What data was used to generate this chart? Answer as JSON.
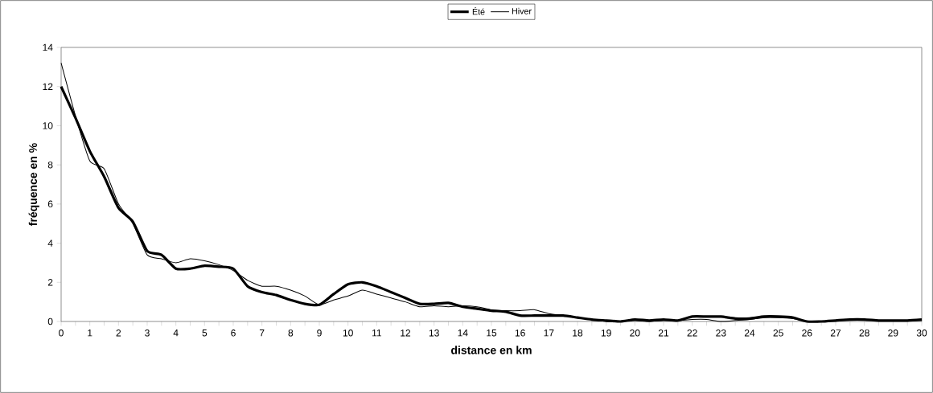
{
  "chart_data": {
    "type": "line",
    "xlabel": "distance en km",
    "ylabel": "fréquence en %",
    "x": [
      0,
      0.5,
      1,
      1.5,
      2,
      2.5,
      3,
      3.5,
      4,
      4.5,
      5,
      5.5,
      6,
      6.5,
      7,
      7.5,
      8,
      8.5,
      9,
      9.5,
      10,
      10.5,
      11,
      11.5,
      12,
      12.5,
      13,
      13.5,
      14,
      14.5,
      15,
      15.5,
      16,
      16.5,
      17,
      17.5,
      18,
      18.5,
      19,
      19.5,
      20,
      20.5,
      21,
      21.5,
      22,
      22.5,
      23,
      23.5,
      24,
      24.5,
      25,
      25.5,
      26,
      26.5,
      27,
      27.5,
      28,
      28.5,
      29,
      29.5,
      30
    ],
    "series": [
      {
        "name": "Été",
        "color": "#000000",
        "values": [
          12.0,
          10.4,
          8.7,
          7.4,
          5.8,
          5.1,
          3.6,
          3.4,
          2.7,
          2.7,
          2.85,
          2.8,
          2.7,
          1.8,
          1.5,
          1.35,
          1.1,
          0.9,
          0.85,
          1.4,
          1.9,
          2.0,
          1.8,
          1.5,
          1.2,
          0.9,
          0.9,
          0.95,
          0.75,
          0.65,
          0.55,
          0.5,
          0.3,
          0.3,
          0.3,
          0.3,
          0.2,
          0.1,
          0.05,
          0.0,
          0.1,
          0.05,
          0.1,
          0.05,
          0.25,
          0.25,
          0.25,
          0.15,
          0.15,
          0.25,
          0.25,
          0.2,
          0.0,
          0.0,
          0.05,
          0.1,
          0.1,
          0.05,
          0.05,
          0.05,
          0.1
        ]
      },
      {
        "name": "Hiver",
        "color": "#000000",
        "values": [
          13.2,
          10.5,
          8.2,
          7.8,
          6.0,
          5.0,
          3.4,
          3.2,
          3.0,
          3.2,
          3.1,
          2.9,
          2.6,
          2.1,
          1.8,
          1.8,
          1.6,
          1.3,
          0.85,
          1.1,
          1.3,
          1.6,
          1.4,
          1.2,
          1.0,
          0.75,
          0.8,
          0.75,
          0.8,
          0.75,
          0.6,
          0.55,
          0.55,
          0.6,
          0.4,
          0.3,
          0.2,
          0.1,
          0.0,
          0.0,
          0.05,
          0.0,
          0.05,
          0.05,
          0.1,
          0.1,
          0.0,
          0.05,
          0.1,
          0.2,
          0.2,
          0.15,
          0.0,
          0.0,
          0.05,
          0.1,
          0.1,
          0.05,
          0.05,
          0.05,
          0.05
        ]
      }
    ],
    "xlim": [
      0,
      30
    ],
    "xticks": [
      0,
      {
        "value": 0.5,
        "label": null
      },
      1,
      {
        "value": 1.5,
        "label": null
      },
      2,
      {
        "value": 2.5,
        "label": null
      },
      3,
      {
        "value": 3.5,
        "label": null
      },
      4,
      {
        "value": 4.5,
        "label": null
      },
      5,
      {
        "value": 5.5,
        "label": null
      },
      6,
      {
        "value": 6.5,
        "label": null
      },
      7,
      {
        "value": 7.5,
        "label": null
      },
      8,
      {
        "value": 8.5,
        "label": null
      },
      9,
      {
        "value": 9.5,
        "label": null
      },
      10,
      {
        "value": 10.5,
        "label": null
      },
      11,
      {
        "value": 11.5,
        "label": null
      },
      12,
      {
        "value": 12.5,
        "label": null
      },
      13,
      {
        "value": 13.5,
        "label": null
      },
      14,
      {
        "value": 14.5,
        "label": null
      },
      15,
      {
        "value": 15.5,
        "label": null
      },
      16,
      {
        "value": 16.5,
        "label": null
      },
      17,
      {
        "value": 17.5,
        "label": null
      },
      18,
      {
        "value": 18.5,
        "label": null
      },
      19,
      {
        "value": 19.5,
        "label": null
      },
      20,
      {
        "value": 20.5,
        "label": null
      },
      21,
      {
        "value": 21.5,
        "label": null
      },
      22,
      {
        "value": 22.5,
        "label": null
      },
      23,
      {
        "value": 23.5,
        "label": null
      },
      24,
      {
        "value": 24.5,
        "label": null
      },
      25,
      {
        "value": 25.5,
        "label": null
      },
      26,
      {
        "value": 26.5,
        "label": null
      },
      27,
      {
        "value": 27.5,
        "label": null
      },
      28,
      {
        "value": 28.5,
        "label": null
      },
      29,
      {
        "value": 29.5,
        "label": null
      },
      30
    ],
    "ylim": [
      0,
      14
    ],
    "yticks": [
      0,
      2,
      4,
      6,
      8,
      10,
      12,
      14
    ],
    "grid": false,
    "legend": "top",
    "marker": "none",
    "line_style": "solid"
  }
}
